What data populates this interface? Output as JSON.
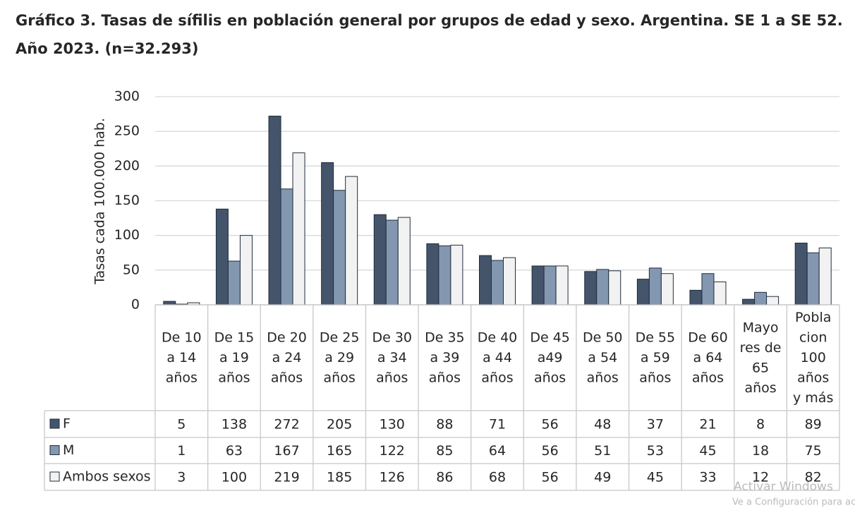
{
  "chart_data": {
    "type": "bar",
    "title": "Gráfico 3. Tasas de sífilis en población general por grupos de edad y sexo. Argentina. SE 1 a SE 52.",
    "subtitle": "Año 2023. (n=32.293)",
    "y_label": "Tasas cada 100.000 hab.",
    "categories": [
      "De 10\na 14\naños",
      "De 15\na 19\naños",
      "De 20\na 24\naños",
      "De 25\na 29\naños",
      "De 30\na 34\naños",
      "De 35\na 39\naños",
      "De 40\na 44\naños",
      "De 45\na49\naños",
      "De 50\na 54\naños",
      "De 55\na 59\naños",
      "De 60\na 64\naños",
      "Mayo\nres de\n65\naños",
      "Pobla\ncion\n100\naños\ny más"
    ],
    "series": [
      {
        "name": "F",
        "color": "#44546a",
        "values": [
          5,
          138,
          272,
          205,
          130,
          88,
          71,
          56,
          48,
          37,
          21,
          8,
          89
        ]
      },
      {
        "name": "M",
        "color": "#8497b0",
        "values": [
          1,
          63,
          167,
          165,
          122,
          85,
          64,
          56,
          51,
          53,
          45,
          18,
          75
        ]
      },
      {
        "name": "Ambos sexos",
        "color": "#f2f2f2",
        "values": [
          3,
          100,
          219,
          185,
          126,
          86,
          68,
          56,
          49,
          45,
          33,
          12,
          82
        ]
      }
    ],
    "ylim": [
      0,
      300
    ],
    "yticks": [
      0,
      50,
      100,
      150,
      200,
      250,
      300
    ],
    "grid": true
  },
  "watermark": {
    "title": "Activar Windows",
    "text": "Ve a Configuración para ac"
  }
}
